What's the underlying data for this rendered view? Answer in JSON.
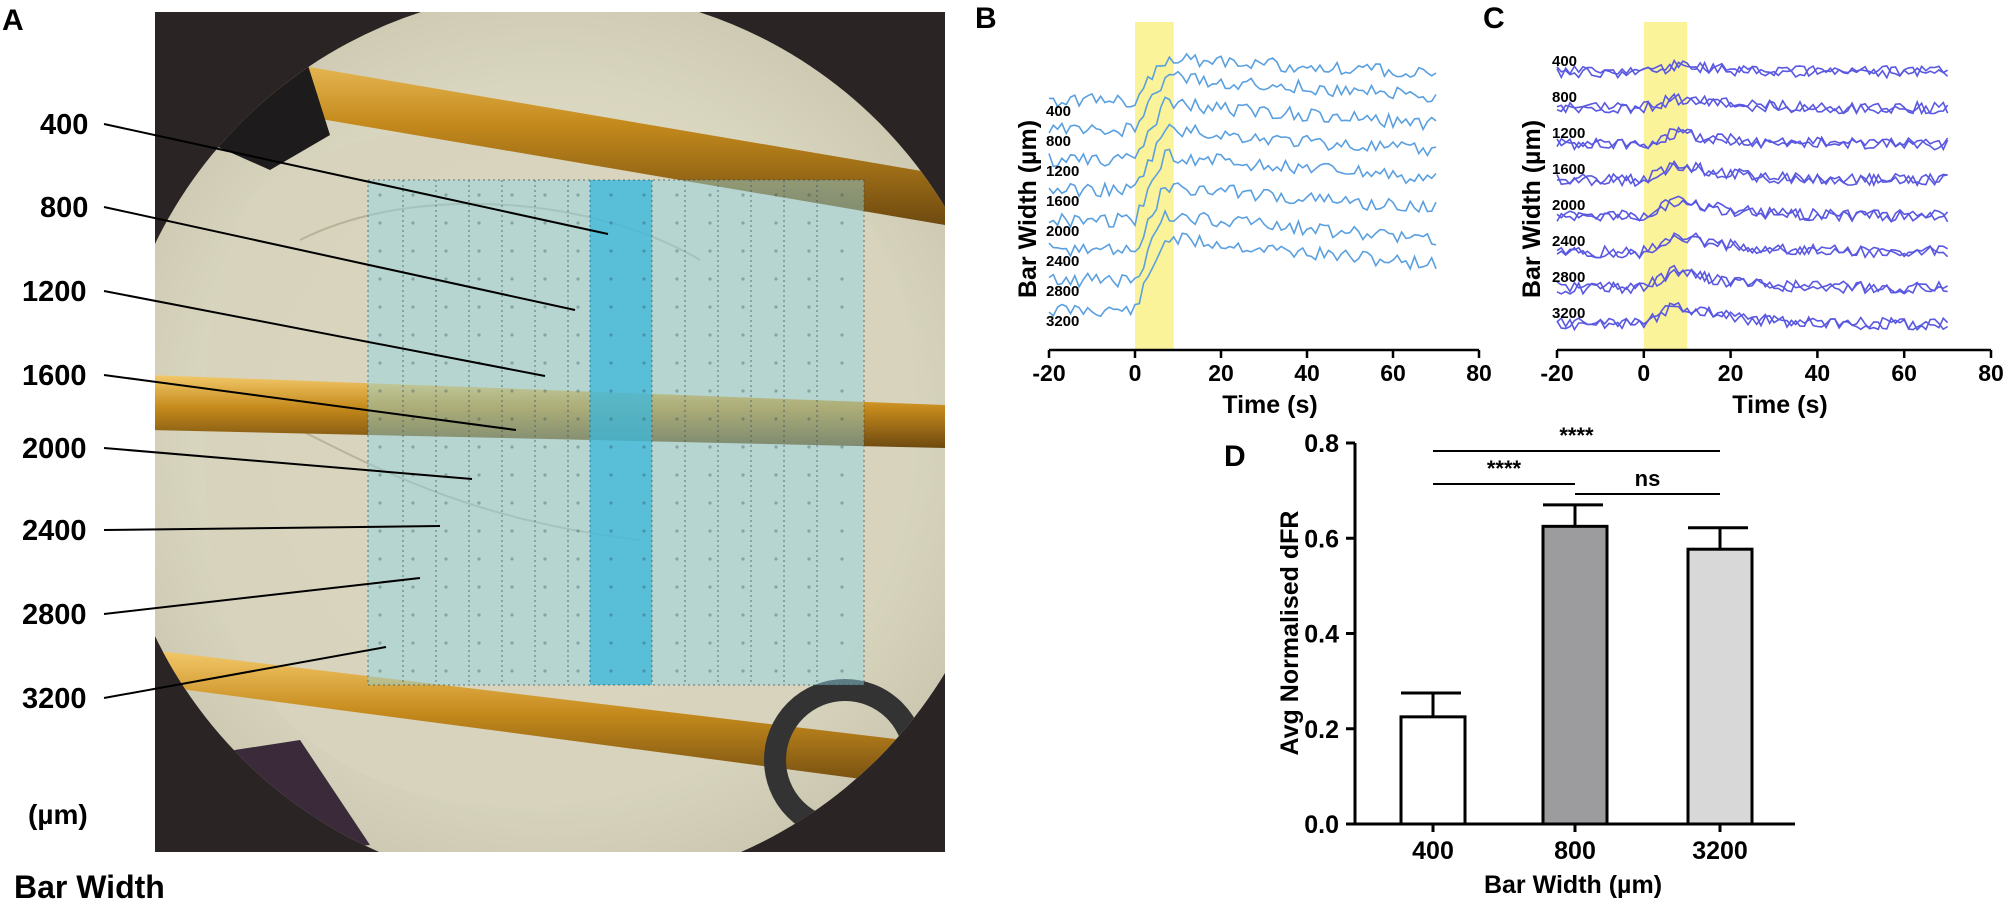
{
  "panels": {
    "a": {
      "label": "A",
      "bar_width_labels": [
        "400",
        "800",
        "1200",
        "1600",
        "2000",
        "2400",
        "2800",
        "3200"
      ],
      "unit": "(µm)",
      "caption": "Bar Width"
    },
    "b": {
      "label": "B",
      "trace_color": "#5aa0e0",
      "stim_color": "#fbf39a"
    },
    "c": {
      "label": "C",
      "trace_color": "#5a58e0",
      "stim_color": "#fbf39a"
    },
    "d": {
      "label": "D"
    }
  },
  "chart_data": [
    {
      "panel": "B",
      "type": "line",
      "xlabel": "Time (s)",
      "ylabel": "Bar Width (µm)",
      "xlim": [
        -20,
        80
      ],
      "xticks": [
        -20,
        0,
        20,
        40,
        60,
        80
      ],
      "x_range_of_traces": [
        -20,
        70
      ],
      "stimulus_window_s": [
        0,
        9
      ],
      "series": [
        {
          "name": "3200",
          "peak_offset": 0.95
        },
        {
          "name": "2800",
          "peak_offset": 0.85
        },
        {
          "name": "2400",
          "peak_offset": 0.85
        },
        {
          "name": "2000",
          "peak_offset": 0.85
        },
        {
          "name": "1600",
          "peak_offset": 0.8
        },
        {
          "name": "1200",
          "peak_offset": 0.75
        },
        {
          "name": "800",
          "peak_offset": 0.7
        },
        {
          "name": "400",
          "peak_offset": 0.55
        }
      ],
      "grid": false
    },
    {
      "panel": "C",
      "type": "line",
      "xlabel": "Time (s)",
      "ylabel": "Bar Width (µm)",
      "xlim": [
        -20,
        80
      ],
      "xticks": [
        -20,
        0,
        20,
        40,
        60,
        80
      ],
      "x_range_of_traces": [
        -20,
        70
      ],
      "stimulus_window_s": [
        0,
        10
      ],
      "series": [
        {
          "name": "3200",
          "peak_offset": 0.6
        },
        {
          "name": "2800",
          "peak_offset": 0.55
        },
        {
          "name": "2400",
          "peak_offset": 0.55
        },
        {
          "name": "2000",
          "peak_offset": 0.5
        },
        {
          "name": "1600",
          "peak_offset": 0.5
        },
        {
          "name": "1200",
          "peak_offset": 0.35
        },
        {
          "name": "800",
          "peak_offset": 0.3
        },
        {
          "name": "400",
          "peak_offset": 0.2
        }
      ],
      "grid": false
    },
    {
      "panel": "D",
      "type": "bar",
      "categories": [
        "400",
        "800",
        "3200"
      ],
      "values": [
        0.225,
        0.625,
        0.577
      ],
      "errors": [
        0.05,
        0.045,
        0.045
      ],
      "bar_colors": [
        "#ffffff",
        "#9c9c9e",
        "#d8d8d8"
      ],
      "xlabel": "Bar Width (µm)",
      "ylabel": "Avg Normalised dFR",
      "ylim": [
        0,
        0.8
      ],
      "yticks": [
        "0.0",
        "0.2",
        "0.4",
        "0.6",
        "0.8"
      ],
      "significance": [
        {
          "from": "400",
          "to": "3200",
          "label": "****"
        },
        {
          "from": "400",
          "to": "800",
          "label": "****"
        },
        {
          "from": "800",
          "to": "3200",
          "label": "ns"
        }
      ],
      "grid": false
    }
  ]
}
